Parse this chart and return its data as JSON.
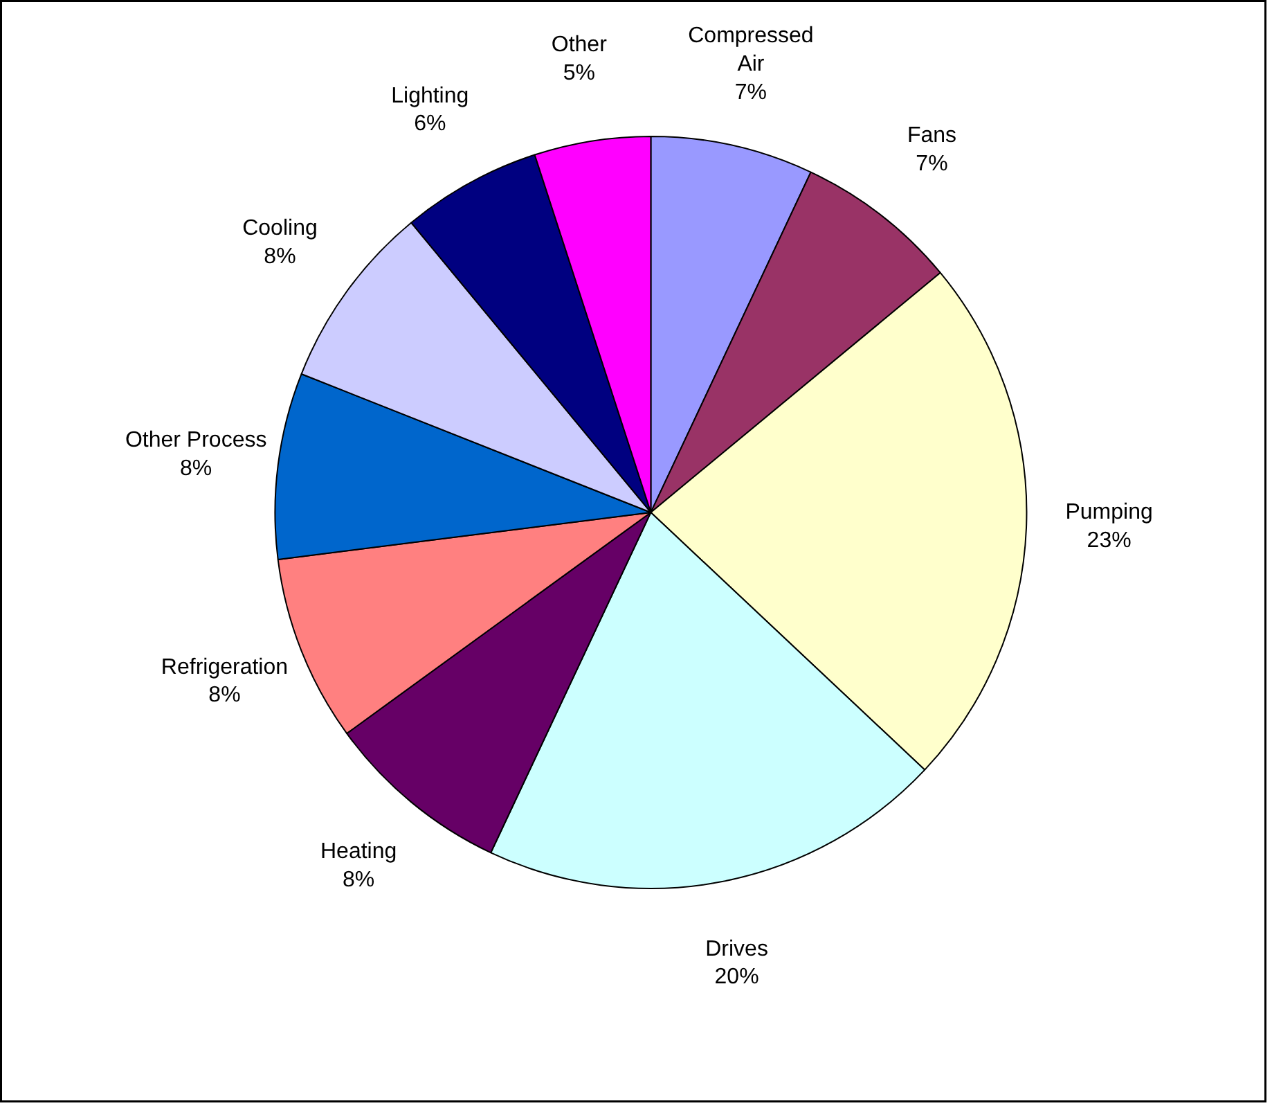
{
  "chart_data": {
    "type": "pie",
    "categories": [
      "Compressed Air",
      "Fans",
      "Pumping",
      "Drives",
      "Heating",
      "Refrigeration",
      "Other Process",
      "Cooling",
      "Lighting",
      "Other"
    ],
    "values": [
      7,
      7,
      23,
      20,
      8,
      8,
      8,
      8,
      6,
      5
    ],
    "colors": [
      "#9999ff",
      "#993366",
      "#ffffcc",
      "#ccffff",
      "#660066",
      "#ff8080",
      "#0066cc",
      "#ccccff",
      "#000080",
      "#ff00ff"
    ],
    "value_labels": [
      "7%",
      "7%",
      "23%",
      "20%",
      "8%",
      "8%",
      "8%",
      "8%",
      "6%",
      "5%"
    ]
  }
}
